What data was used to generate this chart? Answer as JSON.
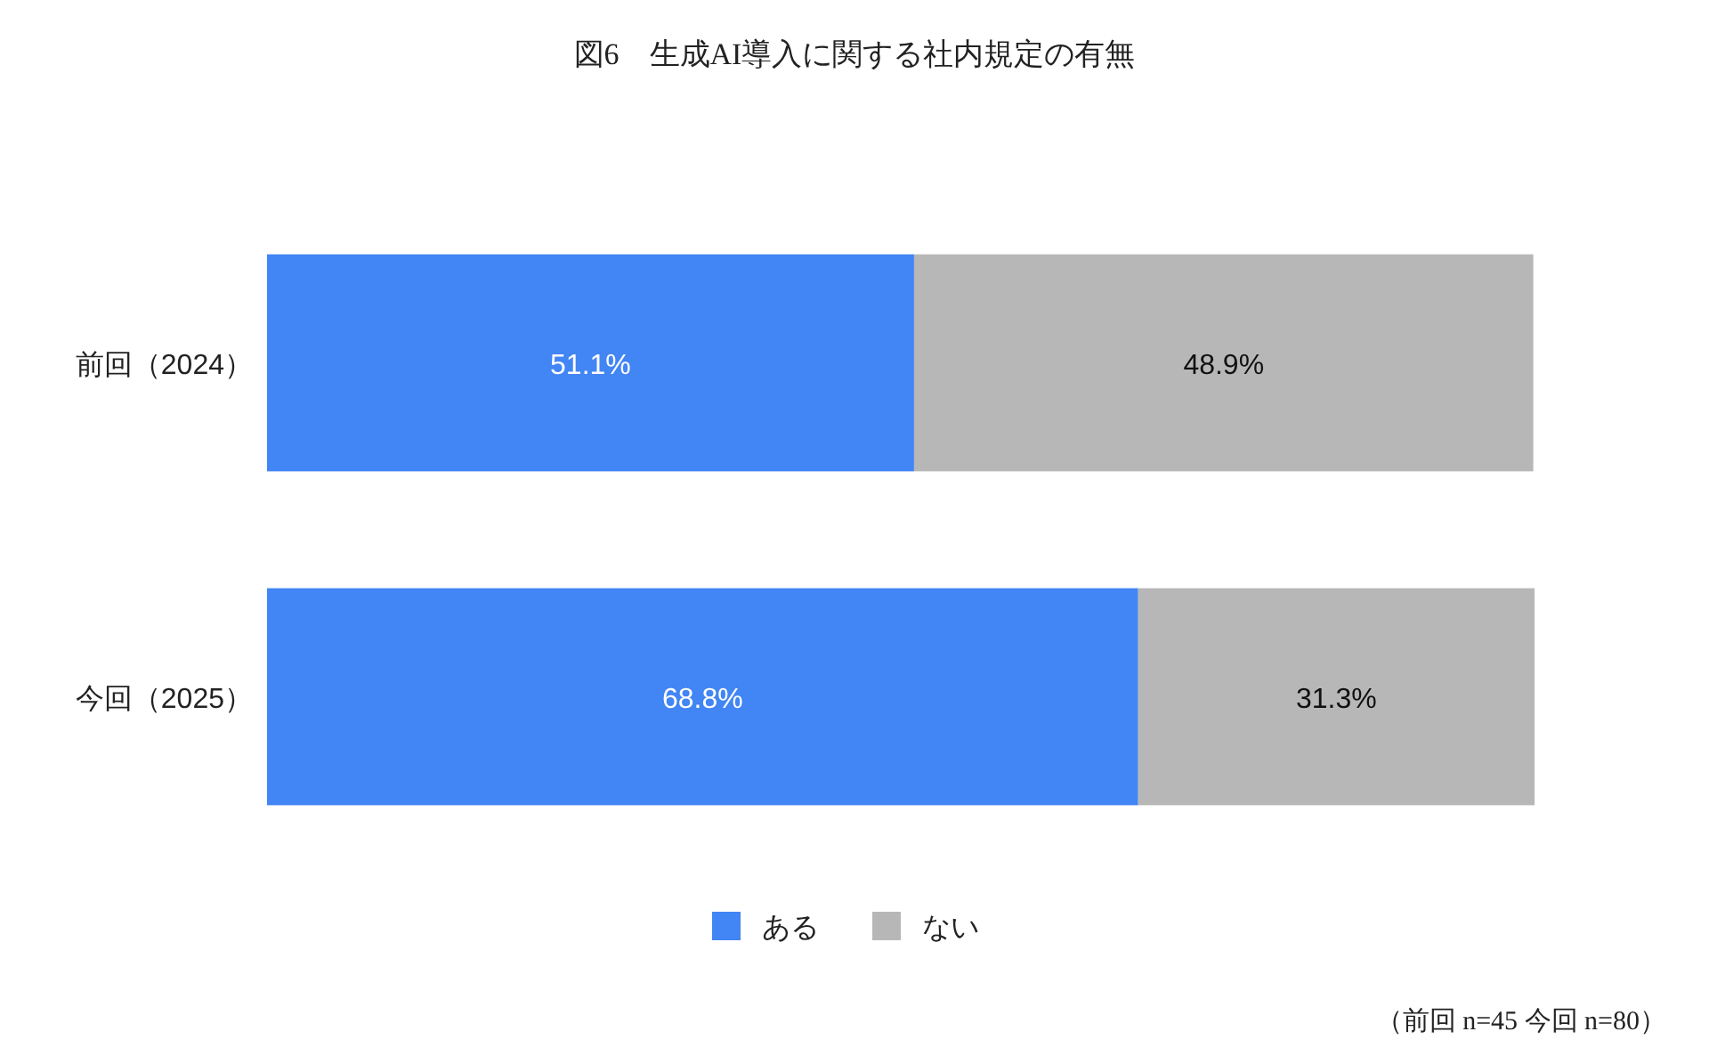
{
  "chart_data": {
    "type": "bar",
    "title": "図6　生成AI導入に関する社内規定の有無",
    "orientation": "horizontal",
    "stacked": true,
    "data_labels": true,
    "legend": "bottom",
    "categories": [
      "前回（2024）",
      "今回（2025）"
    ],
    "series": [
      {
        "name": "ある",
        "color": "#4285f4",
        "values": [
          51.1,
          68.8
        ],
        "value_labels": [
          "51.1%",
          "68.8%"
        ]
      },
      {
        "name": "ない",
        "color": "#b7b7b7",
        "values": [
          48.9,
          31.3
        ],
        "value_labels": [
          "48.9%",
          "31.3%"
        ]
      }
    ],
    "annotations": [
      "（前回 n=45 今回 n=80）"
    ]
  }
}
